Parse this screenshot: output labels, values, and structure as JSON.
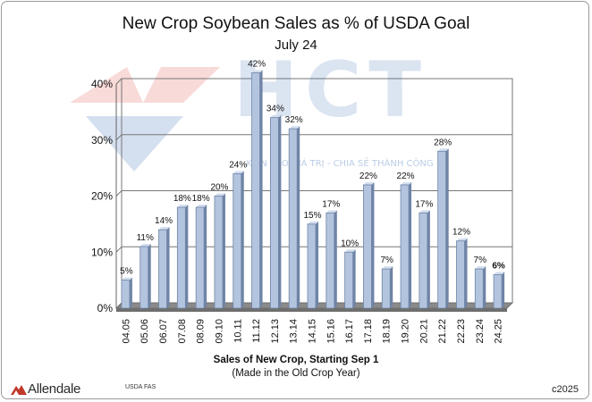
{
  "title": "New Crop Soybean Sales as % of USDA Goal",
  "subtitle": "July 24",
  "watermark": {
    "name": "HCT",
    "tagline": "KIẾN TẠO GIÁ TRỊ - CHIA SẺ THÀNH CÔNG"
  },
  "xlabel": "Sales of New Crop, Starting Sep 1",
  "xlabel_sub": "(Made in the Old Crop Year)",
  "logo_text": "Allendale",
  "source": "USDA FAS",
  "copyright": "c2025",
  "colors": {
    "bar": "#b3c4de",
    "bar_edge": "#6f84a6",
    "floor": "#8a8a8a",
    "watermark_red": "#e25a50",
    "watermark_blue": "#3b6fb6",
    "logo_red": "#c0392b"
  },
  "chart_data": {
    "type": "bar",
    "categories": [
      "04.05",
      "05.06",
      "06.07",
      "07.08",
      "08.09",
      "09.10",
      "10.11",
      "11.12",
      "12.13",
      "13.14",
      "14.15",
      "15.16",
      "16.17",
      "17.18",
      "18.19",
      "19.20",
      "20.21",
      "21.22",
      "22.23",
      "23.24",
      "24.25"
    ],
    "values": [
      5,
      11,
      14,
      18,
      18,
      20,
      24,
      42,
      34,
      32,
      15,
      17,
      10,
      22,
      7,
      22,
      17,
      28,
      12,
      7,
      6
    ],
    "data_labels": [
      "5%",
      "11%",
      "14%",
      "18%",
      "18%",
      "20%",
      "24%",
      "42%",
      "34%",
      "32%",
      "15%",
      "17%",
      "10%",
      "22%",
      "7%",
      "22%",
      "17%",
      "28%",
      "12%",
      "7%",
      "6%"
    ],
    "highlight_last_label_bold": true,
    "ylim": [
      0,
      40
    ],
    "yticks": [
      0,
      10,
      20,
      30,
      40
    ],
    "ytick_labels": [
      "0%",
      "10%",
      "20%",
      "30%",
      "40%"
    ],
    "grid": true
  }
}
